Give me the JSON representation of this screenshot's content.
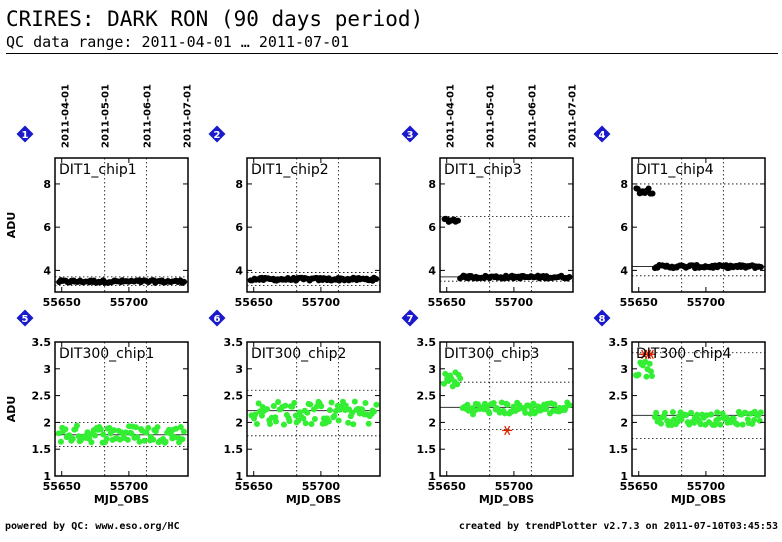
{
  "title": "CRIRES: DARK RON (90 days period)",
  "subtitle": "QC data range: 2011-04-01 … 2011-07-01",
  "footer_left": "powered by QC: www.eso.org/HC",
  "footer_right": "created by trendPlotter v2.7.3 on 2011-07-10T03:45:53",
  "colors": {
    "row1_points": "#000000",
    "row2_points": "#33ee33",
    "outlier": "#dd2200",
    "badge": "#1a1acc"
  },
  "chart_data": [
    {
      "type": "scatter",
      "index": "1",
      "label": "DIT1_chip1",
      "ylabel": "ADU",
      "xlabel": "",
      "xlim": [
        55645,
        55744
      ],
      "ylim": [
        3,
        9.2
      ],
      "xticks": [
        55650,
        55700
      ],
      "yticks": [
        4,
        6,
        8
      ],
      "date_ticks": [
        {
          "x": 55652,
          "label": "2011-04-01"
        },
        {
          "x": 55682,
          "label": "2011-05-01"
        },
        {
          "x": 55713,
          "label": "2011-06-01"
        },
        {
          "x": 55743,
          "label": "2011-07-01"
        }
      ],
      "segments": [
        {
          "x0": 55648,
          "x1": 55741,
          "y0": 3.42,
          "y1": 3.55,
          "n": 80
        }
      ],
      "mean": 3.47,
      "band": [
        3.3,
        3.7
      ],
      "outliers": []
    },
    {
      "type": "scatter",
      "index": "2",
      "label": "DIT1_chip2",
      "ylabel": "",
      "xlabel": "",
      "xlim": [
        55645,
        55744
      ],
      "ylim": [
        3,
        9.2
      ],
      "xticks": [
        55650,
        55700
      ],
      "yticks": [
        4,
        6,
        8
      ],
      "date_ticks": [],
      "segments": [
        {
          "x0": 55648,
          "x1": 55741,
          "y0": 3.52,
          "y1": 3.66,
          "n": 80
        }
      ],
      "mean": 3.58,
      "band": [
        3.3,
        3.9
      ],
      "outliers": []
    },
    {
      "type": "scatter",
      "index": "3",
      "label": "DIT1_chip3",
      "ylabel": "",
      "xlabel": "",
      "xlim": [
        55645,
        55744
      ],
      "ylim": [
        3,
        9.2
      ],
      "xticks": [
        55650,
        55700
      ],
      "yticks": [
        4,
        6,
        8
      ],
      "date_ticks": [
        {
          "x": 55652,
          "label": "2011-04-01"
        },
        {
          "x": 55682,
          "label": "2011-05-01"
        },
        {
          "x": 55713,
          "label": "2011-06-01"
        },
        {
          "x": 55743,
          "label": "2011-07-01"
        }
      ],
      "segments": [
        {
          "x0": 55648,
          "x1": 55658,
          "y0": 6.22,
          "y1": 6.42,
          "n": 10
        },
        {
          "x0": 55660,
          "x1": 55741,
          "y0": 3.62,
          "y1": 3.76,
          "n": 70
        }
      ],
      "mean": 3.7,
      "band": [
        3.5,
        6.5
      ],
      "outliers": []
    },
    {
      "type": "scatter",
      "index": "4",
      "label": "DIT1_chip4",
      "ylabel": "",
      "xlabel": "",
      "xlim": [
        55645,
        55744
      ],
      "ylim": [
        3,
        9.2
      ],
      "xticks": [
        55650,
        55700
      ],
      "yticks": [
        4,
        6,
        8
      ],
      "date_ticks": [],
      "segments": [
        {
          "x0": 55648,
          "x1": 55660,
          "y0": 7.55,
          "y1": 7.85,
          "n": 10
        },
        {
          "x0": 55662,
          "x1": 55741,
          "y0": 4.1,
          "y1": 4.25,
          "n": 70
        }
      ],
      "mean": 4.18,
      "band": [
        3.75,
        8.0
      ],
      "outliers": []
    },
    {
      "type": "scatter",
      "index": "5",
      "label": "DIT300_chip1",
      "ylabel": "ADU",
      "xlabel": "MJD_OBS",
      "xlim": [
        55645,
        55744
      ],
      "ylim": [
        1,
        3.5
      ],
      "xticks": [
        55650,
        55700
      ],
      "yticks": [
        1,
        1.5,
        2,
        2.5,
        3,
        3.5
      ],
      "date_ticks": [],
      "segments": [
        {
          "x0": 55648,
          "x1": 55741,
          "y0": 1.62,
          "y1": 1.95,
          "n": 85
        }
      ],
      "mean": 1.77,
      "band": [
        1.55,
        2.0
      ],
      "outliers": []
    },
    {
      "type": "scatter",
      "index": "6",
      "label": "DIT300_chip2",
      "ylabel": "",
      "xlabel": "MJD_OBS",
      "xlim": [
        55645,
        55744
      ],
      "ylim": [
        1,
        3.5
      ],
      "xticks": [
        55650,
        55700
      ],
      "yticks": [
        1,
        1.5,
        2,
        2.5,
        3,
        3.5
      ],
      "date_ticks": [],
      "segments": [
        {
          "x0": 55648,
          "x1": 55741,
          "y0": 1.95,
          "y1": 2.4,
          "n": 85
        }
      ],
      "mean": 2.22,
      "band": [
        1.75,
        2.6
      ],
      "outliers": []
    },
    {
      "type": "scatter",
      "index": "7",
      "label": "DIT300_chip3",
      "ylabel": "",
      "xlabel": "MJD_OBS",
      "xlim": [
        55645,
        55744
      ],
      "ylim": [
        1,
        3.5
      ],
      "xticks": [
        55650,
        55700
      ],
      "yticks": [
        1,
        1.5,
        2,
        2.5,
        3,
        3.5
      ],
      "date_ticks": [],
      "segments": [
        {
          "x0": 55648,
          "x1": 55660,
          "y0": 2.65,
          "y1": 2.95,
          "n": 12
        },
        {
          "x0": 55662,
          "x1": 55741,
          "y0": 2.15,
          "y1": 2.38,
          "n": 72
        }
      ],
      "mean": 2.28,
      "band": [
        1.87,
        2.75
      ],
      "outliers": [
        {
          "x": 55695,
          "y": 1.85
        }
      ]
    },
    {
      "type": "scatter",
      "index": "8",
      "label": "DIT300_chip4",
      "ylabel": "",
      "xlabel": "MJD_OBS",
      "xlim": [
        55645,
        55744
      ],
      "ylim": [
        1,
        3.5
      ],
      "xticks": [
        55650,
        55700
      ],
      "yticks": [
        1,
        1.5,
        2,
        2.5,
        3,
        3.5
      ],
      "date_ticks": [],
      "segments": [
        {
          "x0": 55648,
          "x1": 55660,
          "y0": 2.85,
          "y1": 3.2,
          "n": 12
        },
        {
          "x0": 55662,
          "x1": 55741,
          "y0": 1.95,
          "y1": 2.2,
          "n": 72
        }
      ],
      "mean": 2.13,
      "band": [
        1.7,
        3.3
      ],
      "outliers": [
        {
          "x": 55654,
          "y": 3.27
        },
        {
          "x": 55657,
          "y": 3.27
        },
        {
          "x": 55659,
          "y": 3.27
        }
      ]
    }
  ]
}
